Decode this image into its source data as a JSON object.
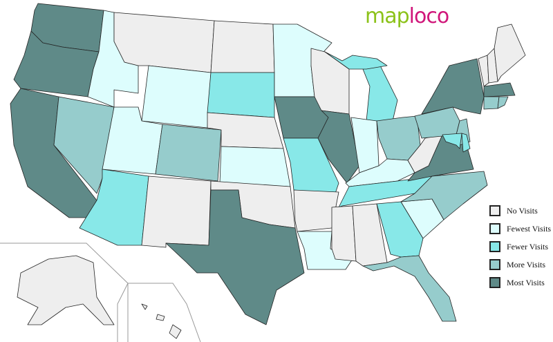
{
  "logo": {
    "part1": "map",
    "part2": "loco",
    "text": "maploco"
  },
  "legend": [
    {
      "key": "none",
      "label": "No Visits",
      "color": "#eeeeee"
    },
    {
      "key": "fewest",
      "label": "Fewest Visits",
      "color": "#ddfdfd"
    },
    {
      "key": "fewer",
      "label": "Fewer Visits",
      "color": "#88e8e8"
    },
    {
      "key": "more",
      "label": "More Visits",
      "color": "#96cccc"
    },
    {
      "key": "most",
      "label": "Most Visits",
      "color": "#5f8a88"
    }
  ],
  "states": {
    "WA": "most",
    "OR": "most",
    "CA": "most",
    "NV": "more",
    "ID": "fewest",
    "MT": "none",
    "WY": "fewest",
    "UT": "fewest",
    "CO": "more",
    "AZ": "fewer",
    "NM": "none",
    "ND": "none",
    "SD": "fewer",
    "NE": "none",
    "KS": "fewest",
    "OK": "none",
    "TX": "most",
    "MN": "fewest",
    "IA": "most",
    "MO": "fewer",
    "AR": "none",
    "LA": "fewest",
    "WI": "none",
    "IL": "most",
    "MI": "fewer",
    "IN": "fewest",
    "OH": "more",
    "KY": "fewest",
    "TN": "fewer",
    "MS": "none",
    "AL": "none",
    "GA": "fewer",
    "FL": "more",
    "SC": "fewest",
    "NC": "more",
    "VA": "most",
    "WV": "none",
    "PA": "more",
    "NY": "most",
    "NJ": "more",
    "MD": "fewer",
    "DE": "fewer",
    "VT": "none",
    "NH": "none",
    "ME": "none",
    "MA": "most",
    "CT": "more",
    "RI": "more",
    "AK": "none",
    "HI": "none"
  }
}
